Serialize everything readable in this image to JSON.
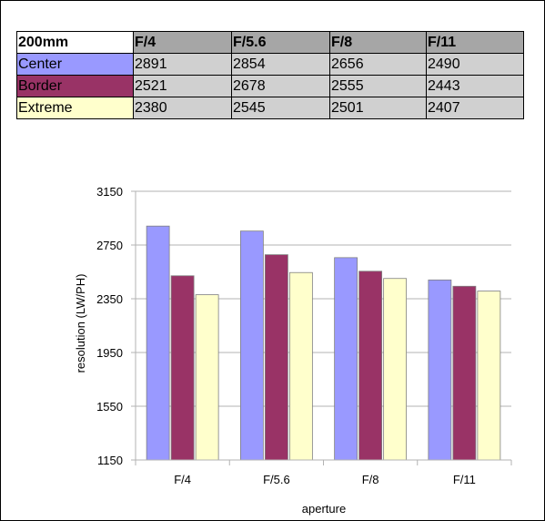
{
  "table": {
    "corner_label": "200mm",
    "columns": [
      "F/4",
      "F/5.6",
      "F/8",
      "F/11"
    ],
    "rows": [
      {
        "label": "Center",
        "color": "#9999ff",
        "values": [
          "2891",
          "2854",
          "2656",
          "2490"
        ]
      },
      {
        "label": "Border",
        "color": "#993366",
        "values": [
          "2521",
          "2678",
          "2555",
          "2443"
        ]
      },
      {
        "label": "Extreme",
        "color": "#ffffcc",
        "values": [
          "2380",
          "2545",
          "2501",
          "2407"
        ]
      }
    ]
  },
  "chart_data": {
    "type": "bar",
    "categories": [
      "F/4",
      "F/5.6",
      "F/8",
      "F/11"
    ],
    "series": [
      {
        "name": "Center",
        "color": "#9999ff",
        "values": [
          2891,
          2854,
          2656,
          2490
        ]
      },
      {
        "name": "Border",
        "color": "#993366",
        "values": [
          2521,
          2678,
          2555,
          2443
        ]
      },
      {
        "name": "Extreme",
        "color": "#ffffcc",
        "values": [
          2380,
          2545,
          2501,
          2407
        ]
      }
    ],
    "xlabel": "aperture",
    "ylabel": "resolution (LW/PH)",
    "ylim": [
      1150,
      3150
    ],
    "yticks": [
      1150,
      1550,
      1950,
      2350,
      2750,
      3150
    ],
    "grid": true,
    "legend": "none"
  }
}
